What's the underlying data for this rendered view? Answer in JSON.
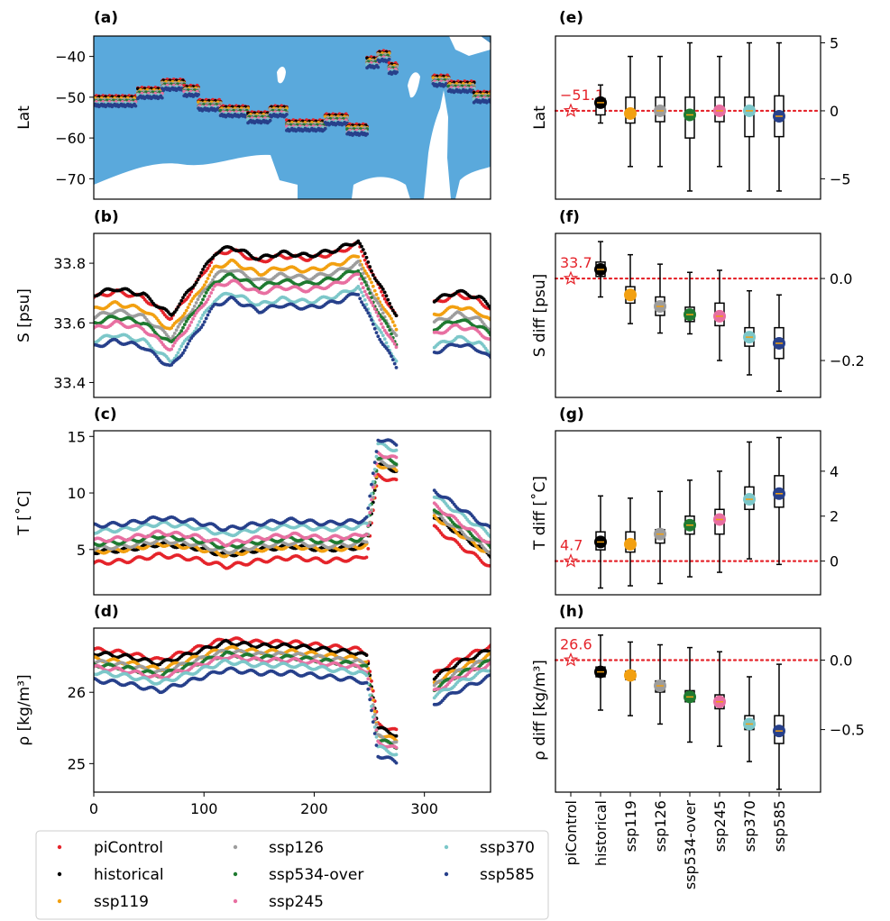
{
  "colors": {
    "ocean": "#5aa9dc",
    "reference": "#e5242b"
  },
  "legend": {
    "items": [
      {
        "name": "piControl",
        "color": "#e5242b"
      },
      {
        "name": "historical",
        "color": "#000000"
      },
      {
        "name": "ssp119",
        "color": "#f2a011"
      },
      {
        "name": "ssp126",
        "color": "#9d9d9d"
      },
      {
        "name": "ssp534-over",
        "color": "#1f7a30"
      },
      {
        "name": "ssp245",
        "color": "#e86fa1"
      },
      {
        "name": "ssp370",
        "color": "#7cc7c9"
      },
      {
        "name": "ssp585",
        "color": "#27408b"
      }
    ]
  },
  "chart_data": [
    {
      "type": "scatter",
      "panel": "(a)",
      "xlabel": "",
      "ylabel": "Lat",
      "xlim": [
        0,
        360
      ],
      "ylim": [
        -75,
        -35
      ],
      "yticks": [
        -40,
        -50,
        -60,
        -70
      ],
      "xticks": [],
      "background": "map of ocean (blue) and land (white)",
      "series_offsets": [
        0.6,
        0.3,
        0.0,
        -0.3,
        -0.6,
        -0.9,
        -1.2,
        -1.5
      ],
      "segments": [
        {
          "x": [
            0,
            38
          ],
          "lat": -50.5
        },
        {
          "x": [
            40,
            62
          ],
          "lat": -48.5
        },
        {
          "x": [
            62,
            82
          ],
          "lat": -46.5
        },
        {
          "x": [
            82,
            95
          ],
          "lat": -48.0
        },
        {
          "x": [
            95,
            115
          ],
          "lat": -51.5
        },
        {
          "x": [
            115,
            140
          ],
          "lat": -53.0
        },
        {
          "x": [
            140,
            160
          ],
          "lat": -54.5
        },
        {
          "x": [
            160,
            175
          ],
          "lat": -53.0
        },
        {
          "x": [
            175,
            210
          ],
          "lat": -56.5
        },
        {
          "x": [
            210,
            230
          ],
          "lat": -55.0
        },
        {
          "x": [
            230,
            248
          ],
          "lat": -57.5
        },
        {
          "x": [
            248,
            258
          ],
          "lat": -41.0
        },
        {
          "x": [
            258,
            268
          ],
          "lat": -39.5
        },
        {
          "x": [
            268,
            275
          ],
          "lat": -42.5
        },
        {
          "x": [
            308,
            322
          ],
          "lat": -45.5
        },
        {
          "x": [
            322,
            345
          ],
          "lat": -47.0
        },
        {
          "x": [
            345,
            360
          ],
          "lat": -49.5
        }
      ]
    },
    {
      "type": "scatter",
      "panel": "(b)",
      "xlabel": "",
      "ylabel": "S [psu]",
      "xlim": [
        0,
        360
      ],
      "ylim": [
        33.35,
        33.9
      ],
      "yticks": [
        33.4,
        33.6,
        33.8
      ],
      "xticks": [],
      "gap": [
        275,
        308
      ],
      "baseline": {
        "x": [
          0,
          20,
          45,
          70,
          90,
          110,
          125,
          150,
          170,
          195,
          220,
          240,
          255,
          275,
          308,
          330,
          350,
          360
        ],
        "y": [
          33.62,
          33.64,
          33.62,
          33.55,
          33.65,
          33.76,
          33.78,
          33.74,
          33.76,
          33.75,
          33.77,
          33.8,
          33.68,
          33.55,
          33.6,
          33.63,
          33.61,
          33.58
        ]
      },
      "series_offsets": [
        0.065,
        0.075,
        0.025,
        0.0,
        -0.02,
        -0.04,
        -0.08,
        -0.1
      ]
    },
    {
      "type": "scatter",
      "panel": "(c)",
      "xlabel": "",
      "ylabel": "T [˚C]",
      "xlim": [
        0,
        360
      ],
      "ylim": [
        1,
        15.5
      ],
      "yticks": [
        5,
        10,
        15
      ],
      "xticks": [],
      "gap": [
        275,
        308
      ],
      "baseline": {
        "x": [
          0,
          30,
          60,
          90,
          120,
          150,
          180,
          210,
          240,
          248,
          258,
          275,
          308,
          330,
          360
        ],
        "y": [
          4.8,
          5.0,
          5.5,
          5.2,
          4.5,
          5.0,
          5.3,
          5.0,
          5.2,
          5.5,
          12.5,
          12.0,
          8.0,
          6.5,
          4.5
        ]
      },
      "series_offsets": [
        -1.0,
        0.0,
        0.0,
        0.3,
        0.7,
        1.0,
        1.8,
        2.3
      ]
    },
    {
      "type": "scatter",
      "panel": "(d)",
      "xlabel": "",
      "ylabel": "ρ [kg/m³]",
      "xlim": [
        0,
        360
      ],
      "ylim": [
        24.6,
        26.9
      ],
      "yticks": [
        25,
        26
      ],
      "xticks": [
        0,
        100,
        200,
        300
      ],
      "gap": [
        275,
        308
      ],
      "baseline": {
        "x": [
          0,
          30,
          60,
          90,
          120,
          150,
          180,
          210,
          240,
          248,
          258,
          275,
          308,
          330,
          360
        ],
        "y": [
          26.45,
          26.4,
          26.3,
          26.45,
          26.6,
          26.55,
          26.55,
          26.5,
          26.45,
          26.4,
          25.4,
          25.3,
          26.1,
          26.3,
          26.5
        ]
      },
      "series_offsets": [
        0.15,
        0.1,
        0.02,
        -0.02,
        -0.06,
        -0.1,
        -0.17,
        -0.28
      ]
    },
    {
      "type": "box",
      "panel": "(e)",
      "ylabel": "Lat",
      "ylim": [
        -6.5,
        5.5
      ],
      "yticks": [
        5,
        0,
        -5
      ],
      "reference_label": "-51.1",
      "reference_value": 0,
      "categories": [
        "piControl",
        "historical",
        "ssp119",
        "ssp126",
        "ssp534-over",
        "ssp245",
        "ssp370",
        "ssp585"
      ],
      "mean": [
        0,
        0.6,
        -0.2,
        0.0,
        -0.3,
        0.0,
        0.0,
        -0.4
      ],
      "q1": [
        null,
        -0.3,
        -0.9,
        -0.8,
        -2.0,
        -0.8,
        -1.9,
        -1.9
      ],
      "q3": [
        null,
        0.9,
        1.0,
        1.0,
        1.0,
        1.0,
        1.0,
        1.1
      ],
      "whisker_low": [
        null,
        -0.9,
        -4.1,
        -4.1,
        -5.9,
        -4.1,
        -5.9,
        -5.9
      ],
      "whisker_high": [
        null,
        1.9,
        4.0,
        4.0,
        5.0,
        4.0,
        5.0,
        5.0
      ]
    },
    {
      "type": "box",
      "panel": "(f)",
      "ylabel": "S diff [psu]",
      "ylim": [
        -0.29,
        0.11
      ],
      "yticks": [
        0.0,
        -0.2
      ],
      "reference_label": "33.7",
      "reference_value": 0,
      "categories": [
        "piControl",
        "historical",
        "ssp119",
        "ssp126",
        "ssp534-over",
        "ssp245",
        "ssp370",
        "ssp585"
      ],
      "mean": [
        0,
        0.022,
        -0.04,
        -0.068,
        -0.088,
        -0.092,
        -0.143,
        -0.158
      ],
      "q1": [
        null,
        0.005,
        -0.06,
        -0.09,
        -0.105,
        -0.115,
        -0.165,
        -0.195
      ],
      "q3": [
        null,
        0.04,
        -0.02,
        -0.045,
        -0.07,
        -0.06,
        -0.12,
        -0.12
      ],
      "whisker_low": [
        null,
        -0.045,
        -0.11,
        -0.133,
        -0.135,
        -0.2,
        -0.235,
        -0.275
      ],
      "whisker_high": [
        null,
        0.09,
        0.058,
        0.035,
        0.015,
        0.02,
        -0.03,
        -0.04
      ]
    },
    {
      "type": "box",
      "panel": "(g)",
      "ylabel": "T diff [˚C]",
      "ylim": [
        -1.5,
        5.8
      ],
      "yticks": [
        0,
        2,
        4
      ],
      "reference_label": "4.7",
      "reference_value": 0,
      "categories": [
        "piControl",
        "historical",
        "ssp119",
        "ssp126",
        "ssp534-over",
        "ssp245",
        "ssp370",
        "ssp585"
      ],
      "mean": [
        0,
        0.85,
        0.75,
        1.2,
        1.6,
        1.85,
        2.75,
        3.0
      ],
      "q1": [
        null,
        0.5,
        0.4,
        0.8,
        1.2,
        1.2,
        2.3,
        2.4
      ],
      "q3": [
        null,
        1.3,
        1.3,
        1.4,
        2.0,
        2.3,
        3.3,
        3.8
      ],
      "whisker_low": [
        null,
        -1.2,
        -1.1,
        -1.0,
        -0.7,
        -0.5,
        0.1,
        -0.15
      ],
      "whisker_high": [
        null,
        2.9,
        2.8,
        3.1,
        3.6,
        4.0,
        5.3,
        5.5
      ]
    },
    {
      "type": "box",
      "panel": "(h)",
      "ylabel": "ρ diff [kg/m³]",
      "ylim": [
        -0.95,
        0.23
      ],
      "yticks": [
        0.0,
        -0.5
      ],
      "reference_label": "26.6",
      "reference_value": 0,
      "categories": [
        "piControl",
        "historical",
        "ssp119",
        "ssp126",
        "ssp534-over",
        "ssp245",
        "ssp370",
        "ssp585"
      ],
      "mean": [
        0,
        -0.085,
        -0.11,
        -0.185,
        -0.265,
        -0.3,
        -0.46,
        -0.51
      ],
      "q1": [
        null,
        -0.12,
        -0.14,
        -0.23,
        -0.3,
        -0.35,
        -0.5,
        -0.6
      ],
      "q3": [
        null,
        -0.05,
        -0.08,
        -0.15,
        -0.22,
        -0.25,
        -0.4,
        -0.4
      ],
      "whisker_low": [
        null,
        -0.36,
        -0.4,
        -0.46,
        -0.59,
        -0.62,
        -0.73,
        -0.93
      ],
      "whisker_high": [
        null,
        0.18,
        0.13,
        0.11,
        0.09,
        0.06,
        -0.12,
        -0.03
      ]
    }
  ]
}
